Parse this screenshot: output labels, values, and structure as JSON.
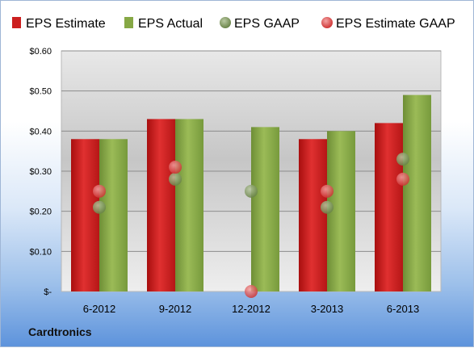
{
  "chart_data": {
    "type": "bar",
    "categories": [
      "6-2012",
      "9-2012",
      "12-2012",
      "3-2013",
      "6-2013"
    ],
    "series": [
      {
        "name": "EPS Estimate",
        "kind": "bar",
        "values": [
          0.38,
          0.43,
          null,
          0.38,
          0.42
        ],
        "color": "#cc1f1f"
      },
      {
        "name": "EPS Actual",
        "kind": "bar",
        "values": [
          0.38,
          0.43,
          0.41,
          0.4,
          0.49
        ],
        "color": "#86a845"
      },
      {
        "name": "EPS GAAP",
        "kind": "marker",
        "values": [
          0.21,
          0.28,
          0.25,
          0.21,
          0.33
        ],
        "color": "#7f9a5a"
      },
      {
        "name": "EPS Estimate GAAP",
        "kind": "marker",
        "values": [
          0.25,
          0.31,
          0.0,
          0.25,
          0.28
        ],
        "color": "#de5a5a"
      }
    ],
    "ylim": [
      0,
      0.6
    ],
    "yticks": [
      0,
      0.1,
      0.2,
      0.3,
      0.4,
      0.5,
      0.6
    ],
    "ytick_labels": [
      "$-",
      "$0.10",
      "$0.20",
      "$0.30",
      "$0.40",
      "$0.50",
      "$0.60"
    ],
    "grid": true,
    "legend_position": "top"
  },
  "footer": {
    "company": "Cardtronics"
  }
}
